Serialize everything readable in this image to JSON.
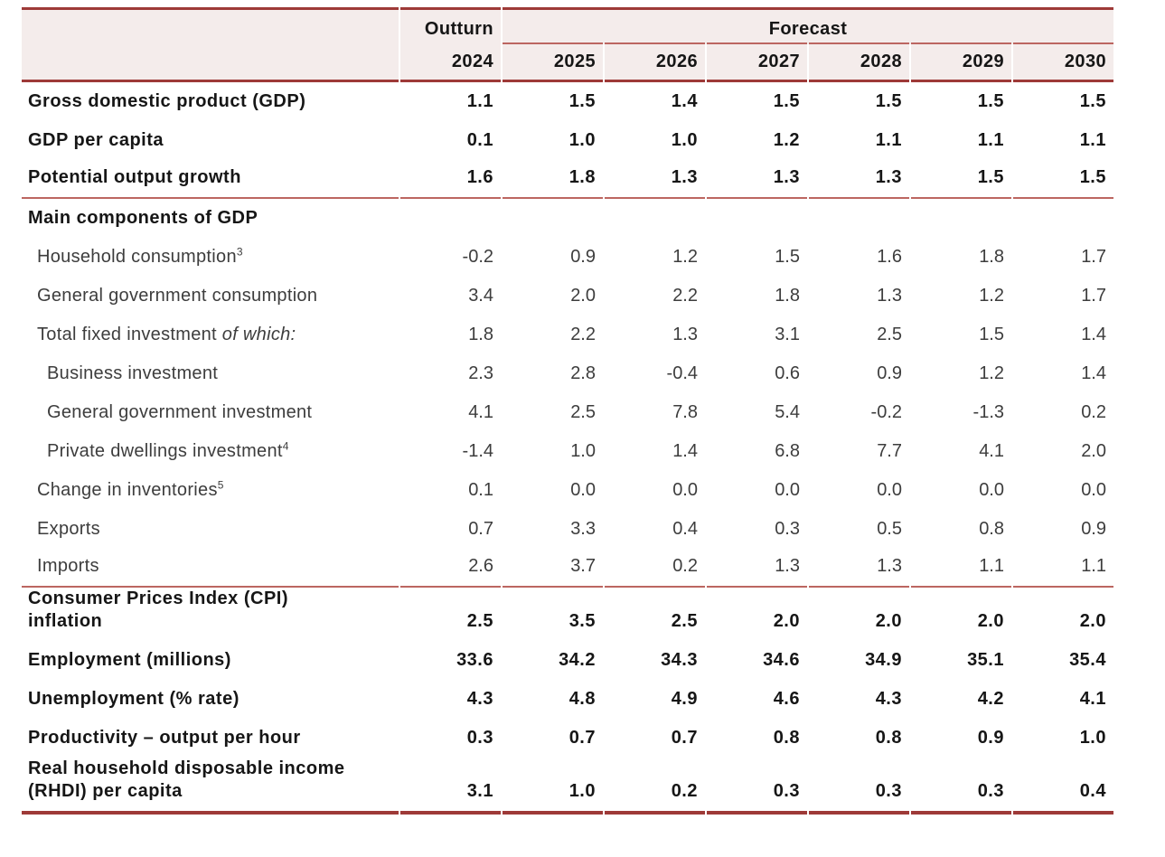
{
  "table": {
    "header": {
      "outturn_label": "Outturn",
      "forecast_label": "Forecast",
      "years": [
        "2024",
        "2025",
        "2026",
        "2027",
        "2028",
        "2029",
        "2030"
      ]
    },
    "rows": [
      {
        "label": "Gross domestic product (GDP)",
        "style": "bold",
        "indent": 0,
        "values": [
          "1.1",
          "1.5",
          "1.4",
          "1.5",
          "1.5",
          "1.5",
          "1.5"
        ]
      },
      {
        "label": "GDP per capita",
        "style": "bold",
        "indent": 0,
        "values": [
          "0.1",
          "1.0",
          "1.0",
          "1.2",
          "1.1",
          "1.1",
          "1.1"
        ]
      },
      {
        "label": "Potential output growth",
        "style": "bold",
        "indent": 0,
        "divider_after": true,
        "values": [
          "1.6",
          "1.8",
          "1.3",
          "1.3",
          "1.3",
          "1.5",
          "1.5"
        ]
      },
      {
        "label": "Main components of GDP",
        "style": "bold",
        "indent": 0,
        "values": [
          "",
          "",
          "",
          "",
          "",
          "",
          ""
        ]
      },
      {
        "label": "Household consumption",
        "sup": "3",
        "indent": 1,
        "values": [
          "-0.2",
          "0.9",
          "1.2",
          "1.5",
          "1.6",
          "1.8",
          "1.7"
        ]
      },
      {
        "label": "General government consumption",
        "indent": 1,
        "values": [
          "3.4",
          "2.0",
          "2.2",
          "1.8",
          "1.3",
          "1.2",
          "1.7"
        ]
      },
      {
        "label": "Total fixed investment",
        "italic": "of which:",
        "indent": 1,
        "values": [
          "1.8",
          "2.2",
          "1.3",
          "3.1",
          "2.5",
          "1.5",
          "1.4"
        ]
      },
      {
        "label": "Business investment",
        "indent": 2,
        "values": [
          "2.3",
          "2.8",
          "-0.4",
          "0.6",
          "0.9",
          "1.2",
          "1.4"
        ]
      },
      {
        "label": "General government investment",
        "indent": 2,
        "values": [
          "4.1",
          "2.5",
          "7.8",
          "5.4",
          "-0.2",
          "-1.3",
          "0.2"
        ]
      },
      {
        "label": "Private dwellings investment",
        "sup": "4",
        "indent": 2,
        "values": [
          "-1.4",
          "1.0",
          "1.4",
          "6.8",
          "7.7",
          "4.1",
          "2.0"
        ]
      },
      {
        "label": "Change in inventories",
        "sup": "5",
        "indent": 1,
        "values": [
          "0.1",
          "0.0",
          "0.0",
          "0.0",
          "0.0",
          "0.0",
          "0.0"
        ]
      },
      {
        "label": "Exports",
        "indent": 1,
        "values": [
          "0.7",
          "3.3",
          "0.4",
          "0.3",
          "0.5",
          "0.8",
          "0.9"
        ]
      },
      {
        "label": "Imports",
        "indent": 1,
        "divider_after": true,
        "values": [
          "2.6",
          "3.7",
          "0.2",
          "1.3",
          "1.3",
          "1.1",
          "1.1"
        ]
      },
      {
        "label": "Consumer Prices Index (CPI)\ninflation",
        "style": "bold",
        "indent": 0,
        "values": [
          "2.5",
          "3.5",
          "2.5",
          "2.0",
          "2.0",
          "2.0",
          "2.0"
        ]
      },
      {
        "label": "Employment (millions)",
        "style": "bold",
        "indent": 0,
        "values": [
          "33.6",
          "34.2",
          "34.3",
          "34.6",
          "34.9",
          "35.1",
          "35.4"
        ]
      },
      {
        "label": "Unemployment (% rate)",
        "style": "bold",
        "indent": 0,
        "values": [
          "4.3",
          "4.8",
          "4.9",
          "4.6",
          "4.3",
          "4.2",
          "4.1"
        ]
      },
      {
        "label": "Productivity – output per hour",
        "style": "bold",
        "indent": 0,
        "values": [
          "0.3",
          "0.7",
          "0.7",
          "0.8",
          "0.8",
          "0.9",
          "1.0"
        ]
      },
      {
        "label": "Real household disposable income\n(RHDI) per capita",
        "style": "bold",
        "indent": 0,
        "values": [
          "3.1",
          "1.0",
          "0.2",
          "0.3",
          "0.3",
          "0.3",
          "0.4"
        ]
      }
    ],
    "colors": {
      "dark_rule": "#9e3a38",
      "light_rule": "#bc6661",
      "header_bg": "#f4eceb",
      "text_normal": "#3d3d3d",
      "text_bold": "#161616",
      "page_bg": "#ffffff"
    }
  }
}
